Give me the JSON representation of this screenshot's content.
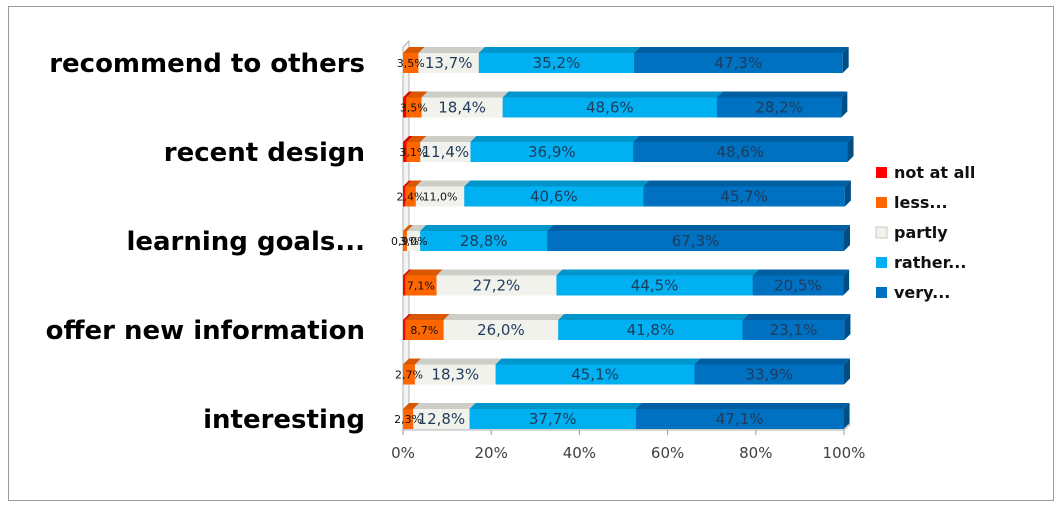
{
  "chart_data": {
    "type": "bar",
    "orientation": "horizontal",
    "stacked": true,
    "percent_stacked": true,
    "three_d": true,
    "grid": false,
    "legend_position": "right",
    "xlim": [
      0,
      100
    ],
    "x_ticks": [
      "0%",
      "20%",
      "40%",
      "60%",
      "80%",
      "100%"
    ],
    "category_labels": [
      "recommend to others",
      "",
      "recent design",
      "",
      "learning goals...",
      "",
      "offer new information",
      "",
      "interesting"
    ],
    "series": [
      {
        "name": "not at all",
        "color": "#ff0000",
        "values": [
          0.0,
          0.7,
          0.8,
          0.5,
          0.0,
          0.5,
          0.5,
          0.0,
          0.0
        ]
      },
      {
        "name": "less...",
        "color": "#ff6600",
        "values": [
          3.5,
          3.5,
          3.1,
          2.4,
          0.9,
          7.1,
          8.7,
          2.7,
          2.3
        ]
      },
      {
        "name": "partly",
        "color": "#f2f2ed",
        "values": [
          13.7,
          18.4,
          11.4,
          11.0,
          3.0,
          27.2,
          26.0,
          18.3,
          12.8
        ]
      },
      {
        "name": "rather...",
        "color": "#00b0f0",
        "values": [
          35.2,
          48.6,
          36.9,
          40.6,
          28.8,
          44.5,
          41.8,
          45.1,
          37.7
        ]
      },
      {
        "name": "very...",
        "color": "#0070c0",
        "values": [
          47.3,
          28.2,
          48.6,
          45.7,
          67.3,
          20.5,
          23.1,
          33.9,
          47.1
        ]
      }
    ],
    "data_labels": [
      [
        "",
        "3,5%",
        "13,7%",
        "35,2%",
        "47,3%"
      ],
      [
        "",
        "3,5%",
        "18,4%",
        "48,6%",
        "28,2%"
      ],
      [
        "",
        "3,1%",
        "11,4%",
        "36,9%",
        "48,6%"
      ],
      [
        "",
        "2,4%",
        "11,0%",
        "40,6%",
        "45,7%"
      ],
      [
        "",
        "0,9%",
        "3,0%",
        "28,8%",
        "67,3%"
      ],
      [
        "",
        "7,1%",
        "27,2%",
        "44,5%",
        "20,5%"
      ],
      [
        "",
        "8,7%",
        "26,0%",
        "41,8%",
        "23,1%"
      ],
      [
        "",
        "2,7%",
        "18,3%",
        "45,1%",
        "33,9%"
      ],
      [
        "",
        "2,3%",
        "12,8%",
        "37,7%",
        "47,1%"
      ]
    ]
  }
}
